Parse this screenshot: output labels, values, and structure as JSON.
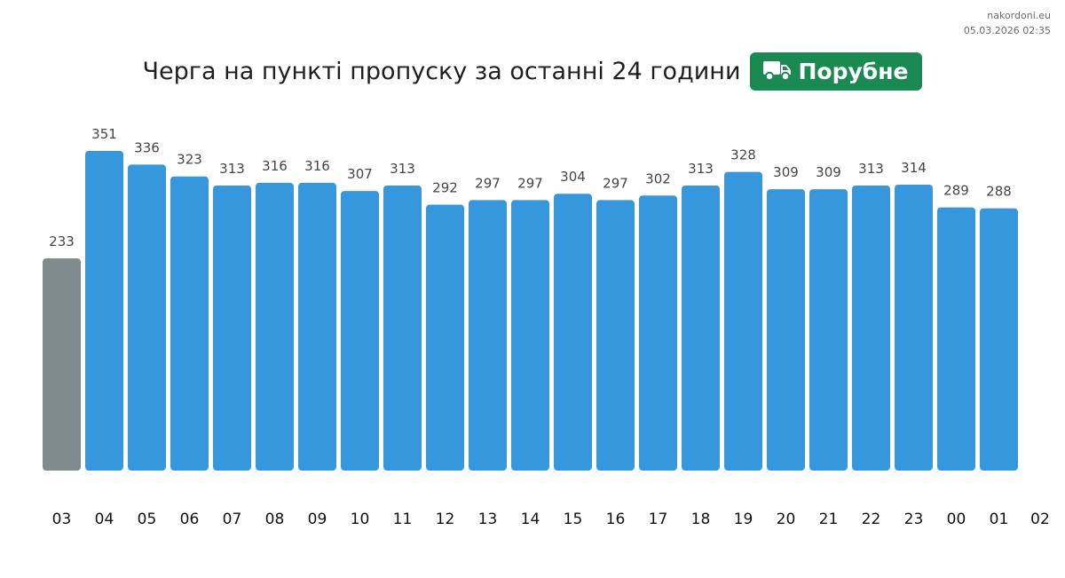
{
  "source": {
    "site": "nakordoni.eu",
    "timestamp": "05.03.2026 02:35"
  },
  "header": {
    "title": "Черга на пункті пропуску за останні 24 години",
    "badge_label": "Порубне",
    "badge_icon": "truck-icon",
    "badge_color": "#1a8a52"
  },
  "chart_data": {
    "type": "bar",
    "title": "Черга на пункті пропуску за останні 24 години",
    "categories": [
      "03",
      "04",
      "05",
      "06",
      "07",
      "08",
      "09",
      "10",
      "11",
      "12",
      "13",
      "14",
      "15",
      "16",
      "17",
      "18",
      "19",
      "20",
      "21",
      "22",
      "23",
      "00",
      "01"
    ],
    "x_tick_labels": [
      "03",
      "04",
      "05",
      "06",
      "07",
      "08",
      "09",
      "10",
      "11",
      "12",
      "13",
      "14",
      "15",
      "16",
      "17",
      "18",
      "19",
      "20",
      "21",
      "22",
      "23",
      "00",
      "01",
      "02"
    ],
    "values": [
      233,
      351,
      336,
      323,
      313,
      316,
      316,
      307,
      313,
      292,
      297,
      297,
      304,
      297,
      302,
      313,
      328,
      309,
      309,
      313,
      314,
      289,
      288
    ],
    "colors": {
      "default": "#3797dd",
      "first": "#7f8c8d"
    },
    "data_labels": true,
    "grid": false,
    "legend": "none",
    "ylim": [
      0,
      351
    ]
  }
}
